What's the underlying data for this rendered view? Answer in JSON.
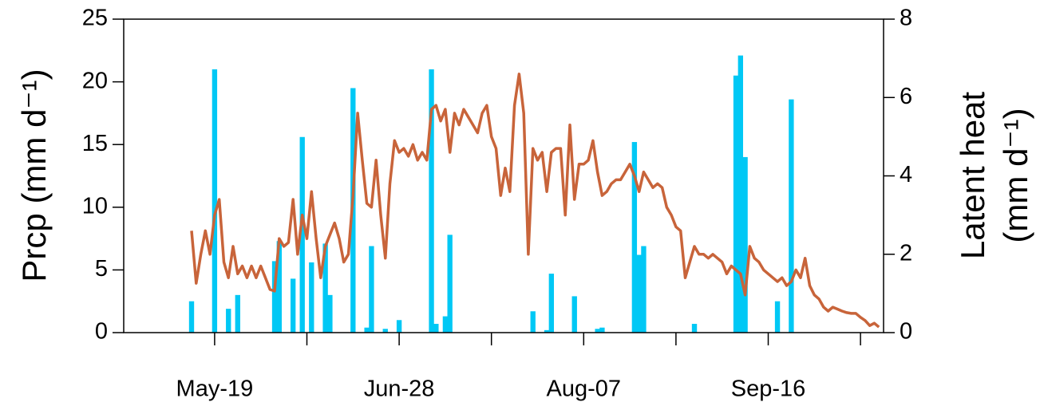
{
  "chart_data": {
    "type": "bar_line",
    "categories": [
      "May-14",
      "May-15",
      "May-16",
      "May-17",
      "May-18",
      "May-19",
      "May-20",
      "May-21",
      "May-22",
      "May-23",
      "May-24",
      "May-25",
      "May-26",
      "May-27",
      "May-28",
      "May-29",
      "May-30",
      "May-31",
      "Jun-01",
      "Jun-02",
      "Jun-03",
      "Jun-04",
      "Jun-05",
      "Jun-06",
      "Jun-07",
      "Jun-08",
      "Jun-09",
      "Jun-10",
      "Jun-11",
      "Jun-12",
      "Jun-13",
      "Jun-14",
      "Jun-15",
      "Jun-16",
      "Jun-17",
      "Jun-18",
      "Jun-19",
      "Jun-20",
      "Jun-21",
      "Jun-22",
      "Jun-23",
      "Jun-24",
      "Jun-25",
      "Jun-26",
      "Jun-27",
      "Jun-28",
      "Jun-29",
      "Jun-30",
      "Jul-01",
      "Jul-02",
      "Jul-03",
      "Jul-04",
      "Jul-05",
      "Jul-06",
      "Jul-07",
      "Jul-08",
      "Jul-09",
      "Jul-10",
      "Jul-11",
      "Jul-12",
      "Jul-13",
      "Jul-14",
      "Jul-15",
      "Jul-16",
      "Jul-17",
      "Jul-18",
      "Jul-19",
      "Jul-20",
      "Jul-21",
      "Jul-22",
      "Jul-23",
      "Jul-24",
      "Jul-25",
      "Jul-26",
      "Jul-27",
      "Jul-28",
      "Jul-29",
      "Jul-30",
      "Jul-31",
      "Aug-01",
      "Aug-02",
      "Aug-03",
      "Aug-04",
      "Aug-05",
      "Aug-06",
      "Aug-07",
      "Aug-08",
      "Aug-09",
      "Aug-10",
      "Aug-11",
      "Aug-12",
      "Aug-13",
      "Aug-14",
      "Aug-15",
      "Aug-16",
      "Aug-17",
      "Aug-18",
      "Aug-19",
      "Aug-20",
      "Aug-21",
      "Aug-22",
      "Aug-23",
      "Aug-24",
      "Aug-25",
      "Aug-26",
      "Aug-27",
      "Aug-28",
      "Aug-29",
      "Aug-30",
      "Aug-31",
      "Sep-01",
      "Sep-02",
      "Sep-03",
      "Sep-04",
      "Sep-05",
      "Sep-06",
      "Sep-07",
      "Sep-08",
      "Sep-09",
      "Sep-10",
      "Sep-11",
      "Sep-12",
      "Sep-13",
      "Sep-14",
      "Sep-15",
      "Sep-16",
      "Sep-17",
      "Sep-18",
      "Sep-19",
      "Sep-20",
      "Sep-21",
      "Sep-22",
      "Sep-23",
      "Sep-24",
      "Sep-25",
      "Sep-26",
      "Sep-27",
      "Sep-28",
      "Sep-29",
      "Sep-30",
      "Oct-01",
      "Oct-02",
      "Oct-03",
      "Oct-04",
      "Oct-05",
      "Oct-06",
      "Oct-07",
      "Oct-08",
      "Oct-09",
      "Oct-10"
    ],
    "series": [
      {
        "type": "bar",
        "color": "#00c8f5",
        "axis": "y",
        "values": [
          2.5,
          0,
          0,
          0,
          0,
          21,
          0,
          0,
          1.9,
          0,
          3.0,
          0,
          0,
          0,
          0,
          0,
          0,
          0,
          5.7,
          7.3,
          0,
          0,
          4.3,
          0,
          15.6,
          0,
          5.6,
          0,
          0,
          7.1,
          3.0,
          0,
          0,
          0,
          0,
          19.5,
          0,
          0,
          0.4,
          6.9,
          0,
          0,
          0.3,
          0,
          0,
          1.0,
          0,
          0,
          0,
          0,
          0,
          0,
          21,
          0.7,
          0,
          1.3,
          7.8,
          0,
          0,
          0,
          0,
          0,
          0,
          0,
          0,
          0,
          0,
          0,
          0,
          0,
          0,
          0,
          0,
          0,
          1.7,
          0,
          0,
          0.2,
          4.7,
          0,
          0,
          0,
          0,
          2.9,
          0,
          0,
          0,
          0,
          0.3,
          0.4,
          0,
          0,
          0,
          0,
          0,
          0,
          15.2,
          6.2,
          6.9,
          0,
          0,
          0,
          0,
          0,
          0,
          0,
          0,
          0,
          0,
          0.7,
          0,
          0,
          0,
          0,
          0,
          0,
          0,
          0,
          20.5,
          22.1,
          14,
          0,
          0,
          0,
          0,
          0,
          0,
          2.5,
          0,
          0,
          18.6,
          0,
          0,
          0,
          0,
          0,
          0,
          0,
          0,
          0,
          0,
          0,
          0,
          0,
          0,
          0,
          0,
          0,
          0,
          0
        ]
      },
      {
        "type": "line",
        "color": "#c8643a",
        "axis": "y2",
        "values": [
          2.6,
          1.26,
          2.0,
          2.6,
          2.0,
          3.0,
          3.4,
          1.8,
          1.4,
          2.2,
          1.5,
          1.7,
          1.4,
          1.7,
          1.4,
          1.7,
          1.4,
          1.1,
          1.06,
          2.4,
          2.2,
          2.3,
          3.4,
          2.0,
          3.0,
          2.4,
          3.6,
          2.4,
          1.4,
          2.2,
          2.5,
          2.8,
          2.4,
          1.8,
          2.0,
          3.5,
          5.6,
          4.4,
          3.3,
          3.2,
          4.4,
          3.0,
          1.9,
          3.8,
          4.9,
          4.6,
          4.7,
          4.5,
          4.8,
          4.4,
          4.6,
          4.4,
          5.7,
          5.8,
          5.4,
          5.7,
          4.6,
          5.6,
          5.3,
          5.7,
          5.5,
          5.3,
          5.1,
          5.6,
          5.8,
          5.0,
          4.7,
          3.5,
          4.2,
          3.6,
          5.8,
          6.6,
          5.6,
          2.0,
          4.7,
          4.4,
          4.6,
          3.6,
          4.6,
          4.7,
          4.7,
          3.0,
          5.3,
          3.4,
          4.3,
          4.3,
          4.4,
          4.9,
          4.1,
          3.5,
          3.6,
          3.8,
          3.9,
          3.9,
          4.1,
          4.3,
          4.0,
          3.6,
          4.1,
          3.9,
          3.7,
          3.8,
          3.7,
          3.2,
          3.0,
          2.7,
          2.6,
          1.4,
          1.8,
          2.2,
          2.0,
          2.0,
          1.9,
          2.0,
          1.9,
          1.8,
          1.5,
          1.7,
          1.6,
          1.5,
          0.96,
          2.2,
          1.9,
          1.8,
          1.6,
          1.5,
          1.4,
          1.3,
          1.4,
          1.2,
          1.3,
          1.6,
          1.4,
          1.9,
          1.2,
          0.96,
          0.86,
          0.65,
          0.55,
          0.65,
          0.6,
          0.55,
          0.51,
          0.49,
          0.49,
          0.39,
          0.31,
          0.18,
          0.24,
          0.14
        ]
      }
    ],
    "xticks": [
      "May-19",
      "Jun-28",
      "Aug-07",
      "Sep-16"
    ],
    "xminorticks": [
      "Jun-08",
      "Jul-18",
      "Aug-27",
      "Oct-06"
    ],
    "ylabel": "Prcp (mm d⁻¹)",
    "ylim": [
      0,
      25
    ],
    "yticks": [
      0,
      5,
      10,
      15,
      20,
      25
    ],
    "y2label": [
      "Latent heat",
      "(mm d⁻¹)"
    ],
    "y2lim": [
      0,
      8
    ],
    "y2ticks": [
      0,
      2,
      4,
      6,
      8
    ]
  }
}
